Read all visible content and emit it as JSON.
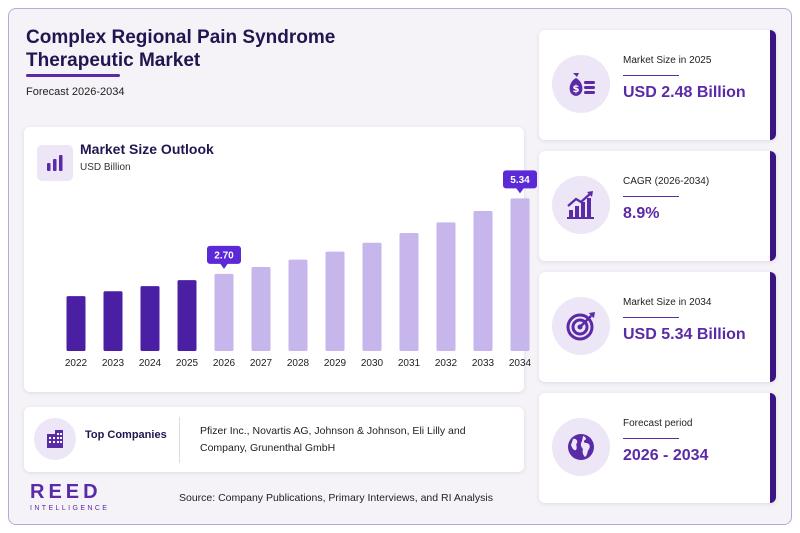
{
  "header": {
    "title": "Complex Regional Pain Syndrome Therapeutic Market",
    "subtitle": "Forecast 2026-2034"
  },
  "chart_panel": {
    "title": "Market Size Outlook",
    "unit": "USD Billion"
  },
  "chart_data": {
    "type": "bar",
    "categories": [
      "2022",
      "2023",
      "2024",
      "2025",
      "2026",
      "2027",
      "2028",
      "2029",
      "2030",
      "2031",
      "2032",
      "2033",
      "2034"
    ],
    "values": [
      1.92,
      2.09,
      2.27,
      2.48,
      2.7,
      2.94,
      3.2,
      3.48,
      3.79,
      4.13,
      4.5,
      4.9,
      5.34
    ],
    "data_labels": {
      "2026": "2.70",
      "2034": "5.34"
    },
    "historical_color": "#4a1fa3",
    "forecast_color": "#c6b6ec",
    "label_color": "#5b2ad6",
    "ylim": [
      0,
      5.6
    ],
    "grid": false,
    "xlabel": "",
    "ylabel": ""
  },
  "companies": {
    "label": "Top Companies",
    "text": "Pfizer Inc., Novartis AG, Johnson & Johnson, Eli Lilly and Company, Grunenthal GmbH",
    "icon": "building-icon"
  },
  "stats": [
    {
      "label": "Market Size in 2025",
      "value": "USD 2.48 Billion",
      "icon": "money-bag-icon"
    },
    {
      "label": "CAGR (2026-2034)",
      "value": "8.9%",
      "icon": "growth-chart-icon"
    },
    {
      "label": "Market Size in 2034",
      "value": "USD 5.34 Billion",
      "icon": "target-icon"
    },
    {
      "label": "Forecast period",
      "value": "2026 - 2034",
      "icon": "globe-icon"
    }
  ],
  "logo": {
    "main": "REED",
    "sub": "INTELLIGENCE"
  },
  "source": "Source: Company Publications, Primary Interviews, and RI Analysis",
  "colors": {
    "accent": "#5b2aa6",
    "dark": "#23154f",
    "border": "#3b1483",
    "icon_bg": "#ece6f6"
  }
}
